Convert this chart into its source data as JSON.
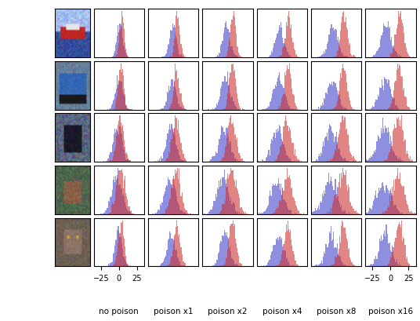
{
  "n_rows": 5,
  "n_cols": 6,
  "col_labels": [
    "no poison",
    "poison x1",
    "poison x2",
    "poison x4",
    "poison x8",
    "poison x16"
  ],
  "xlim": [
    -35,
    35
  ],
  "x_ticks": [
    -25,
    0,
    25
  ],
  "blue_color": "#4444cc",
  "red_color": "#cc3333",
  "alpha": 0.6,
  "fig_width": 5.36,
  "fig_height": 4.1,
  "hist_bins": 60,
  "n_samples": 2000,
  "row_params": [
    [
      1,
      4,
      4,
      3,
      0.55
    ],
    [
      0,
      5,
      3,
      3.5,
      0.55
    ],
    [
      -2,
      6,
      2,
      5,
      0.5
    ],
    [
      -3,
      7,
      2,
      6,
      0.5
    ],
    [
      -1,
      5,
      3,
      4,
      0.5
    ]
  ]
}
